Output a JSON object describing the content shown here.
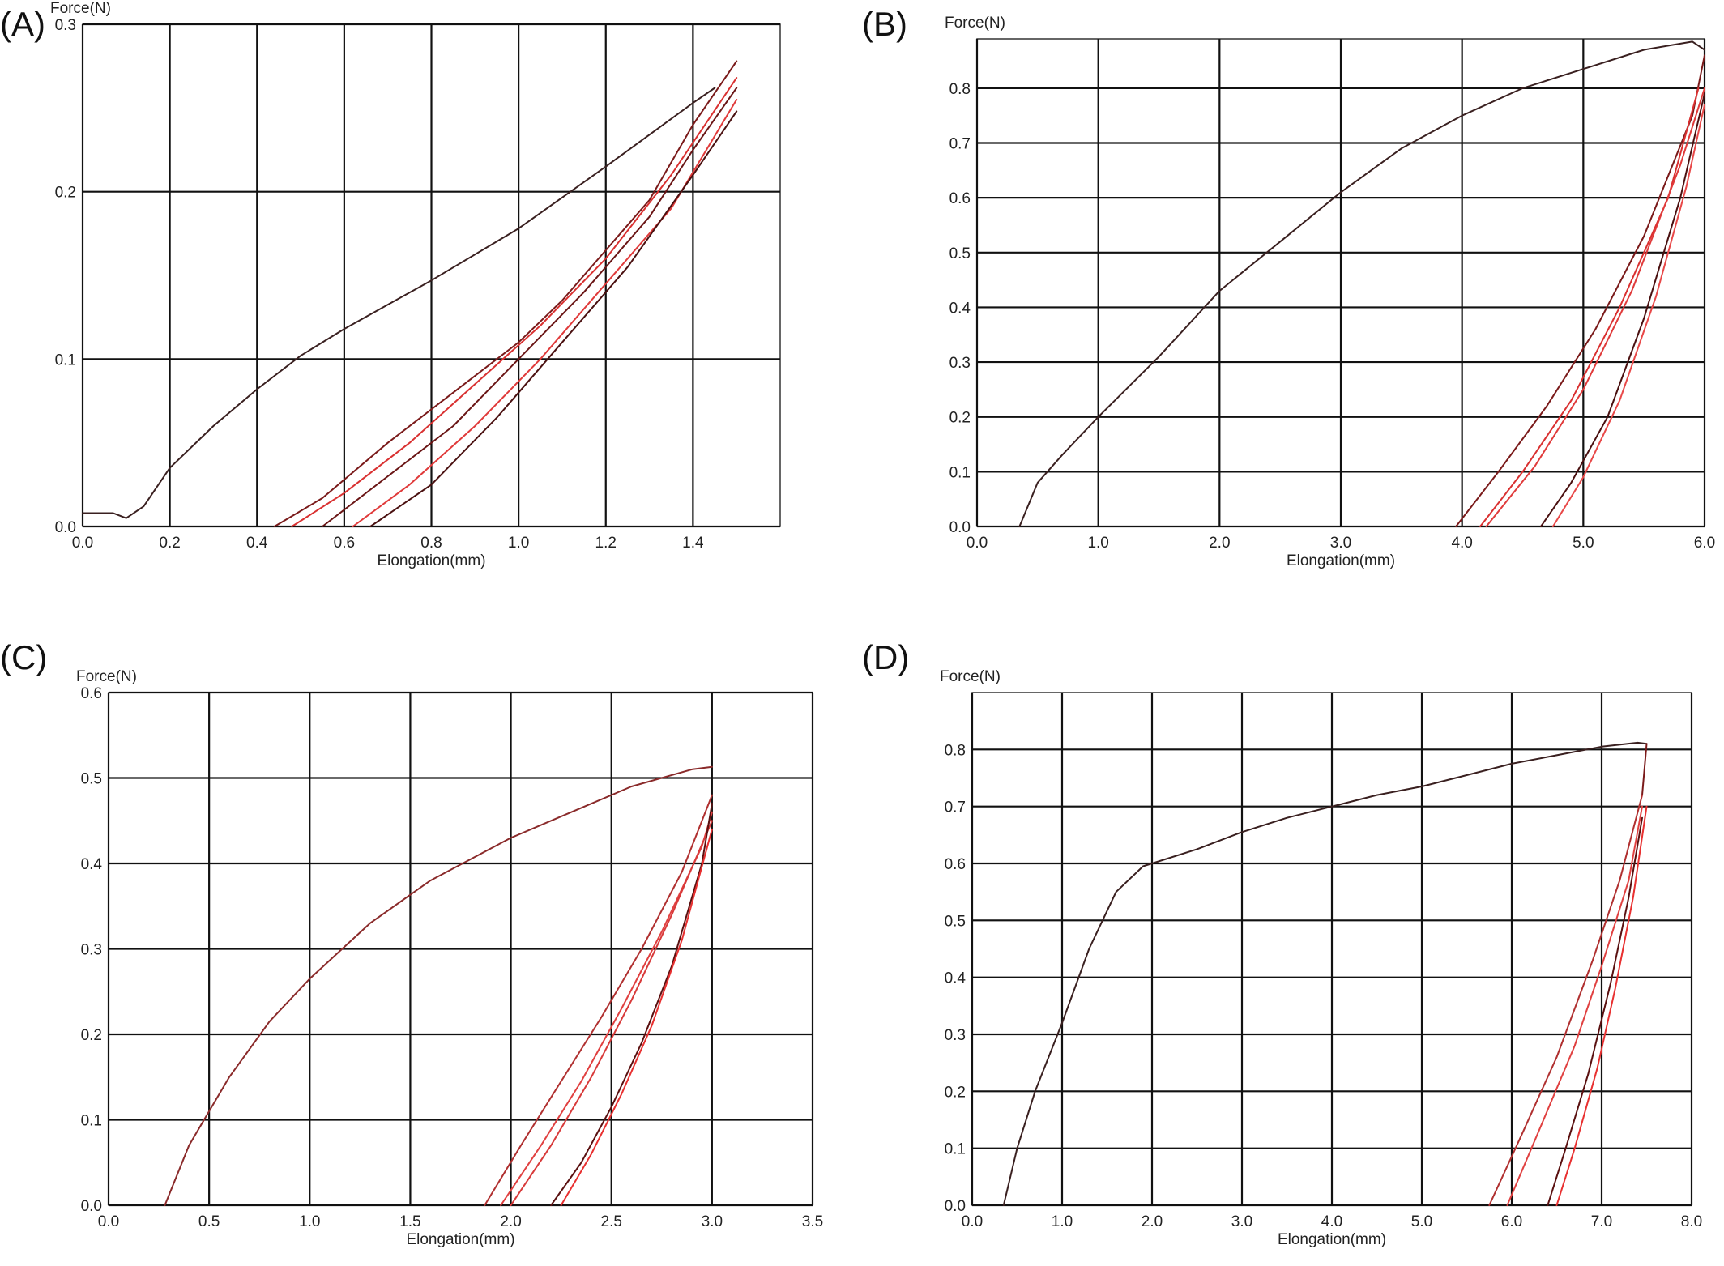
{
  "chart_data": [
    {
      "panel_label": "(A)",
      "type": "line",
      "ylabel": "Force(N)",
      "xlabel": "Elongation(mm)",
      "xlim": [
        0.0,
        1.6
      ],
      "ylim": [
        0.0,
        0.3
      ],
      "xticks": [
        0.0,
        0.2,
        0.4,
        0.6,
        0.8,
        1.0,
        1.2,
        1.4
      ],
      "xtick_labels": [
        "0.0",
        "0.2",
        "0.4",
        "0.6",
        "0.8",
        "1.0",
        "1.2",
        "1.4"
      ],
      "yticks": [
        0.0,
        0.1,
        0.2,
        0.3
      ],
      "ytick_labels": [
        "0.0",
        "0.1",
        "0.2",
        "0.3"
      ],
      "grid": true,
      "series": [
        {
          "color": "#3a2020",
          "x": [
            0.0,
            0.07,
            0.1,
            0.14,
            0.2,
            0.3,
            0.4,
            0.5,
            0.6,
            0.8,
            1.0,
            1.2,
            1.4,
            1.45
          ],
          "y": [
            0.008,
            0.008,
            0.005,
            0.012,
            0.035,
            0.06,
            0.082,
            0.102,
            0.118,
            0.147,
            0.178,
            0.215,
            0.253,
            0.262
          ]
        },
        {
          "color": "#7a1a1a",
          "x": [
            0.44,
            0.55,
            0.7,
            0.85,
            1.0,
            1.1,
            1.2,
            1.3,
            1.4,
            1.5
          ],
          "y": [
            0.0,
            0.017,
            0.05,
            0.08,
            0.11,
            0.135,
            0.165,
            0.195,
            0.24,
            0.278
          ]
        },
        {
          "color": "#d93030",
          "x": [
            0.48,
            0.6,
            0.75,
            0.9,
            1.05,
            1.2,
            1.35,
            1.5
          ],
          "y": [
            0.0,
            0.02,
            0.05,
            0.085,
            0.12,
            0.16,
            0.21,
            0.268
          ]
        },
        {
          "color": "#6a1515",
          "x": [
            0.55,
            0.7,
            0.85,
            1.0,
            1.15,
            1.3,
            1.4,
            1.5
          ],
          "y": [
            0.0,
            0.03,
            0.06,
            0.1,
            0.14,
            0.185,
            0.225,
            0.262
          ]
        },
        {
          "color": "#e03a3a",
          "x": [
            0.62,
            0.75,
            0.9,
            1.05,
            1.2,
            1.35,
            1.5
          ],
          "y": [
            0.0,
            0.025,
            0.06,
            0.1,
            0.145,
            0.19,
            0.255
          ]
        },
        {
          "color": "#4a1010",
          "x": [
            0.66,
            0.8,
            0.95,
            1.1,
            1.25,
            1.4,
            1.5
          ],
          "y": [
            0.0,
            0.025,
            0.065,
            0.11,
            0.155,
            0.21,
            0.248
          ]
        }
      ]
    },
    {
      "panel_label": "(B)",
      "type": "line",
      "ylabel": "Force(N)",
      "xlabel": "Elongation(mm)",
      "xlim": [
        0.0,
        6.0
      ],
      "ylim": [
        0.0,
        0.89
      ],
      "xticks": [
        0.0,
        1.0,
        2.0,
        3.0,
        4.0,
        5.0,
        6.0
      ],
      "xtick_labels": [
        "0.0",
        "1.0",
        "2.0",
        "3.0",
        "4.0",
        "5.0",
        "6.0"
      ],
      "yticks": [
        0.0,
        0.1,
        0.2,
        0.3,
        0.4,
        0.5,
        0.6,
        0.7,
        0.8
      ],
      "ytick_labels": [
        "0.0",
        "0.1",
        "0.2",
        "0.3",
        "0.4",
        "0.5",
        "0.6",
        "0.7",
        "0.8"
      ],
      "grid": true,
      "series": [
        {
          "color": "#3a2020",
          "x": [
            0.35,
            0.5,
            0.7,
            1.0,
            1.5,
            2.0,
            2.5,
            3.0,
            3.5,
            4.0,
            4.5,
            5.0,
            5.5,
            5.9,
            6.0
          ],
          "y": [
            0.0,
            0.08,
            0.13,
            0.2,
            0.31,
            0.43,
            0.52,
            0.61,
            0.69,
            0.75,
            0.8,
            0.835,
            0.87,
            0.885,
            0.87
          ]
        },
        {
          "color": "#7a1a1a",
          "x": [
            3.95,
            4.3,
            4.7,
            5.1,
            5.5,
            5.9,
            6.0
          ],
          "y": [
            0.0,
            0.1,
            0.22,
            0.36,
            0.53,
            0.75,
            0.86
          ]
        },
        {
          "color": "#d93030",
          "x": [
            4.15,
            4.5,
            4.9,
            5.3,
            5.7,
            5.95
          ],
          "y": [
            0.0,
            0.1,
            0.23,
            0.4,
            0.6,
            0.8
          ]
        },
        {
          "color": "#e03a3a",
          "x": [
            4.2,
            4.6,
            5.0,
            5.4,
            5.8,
            6.0
          ],
          "y": [
            0.0,
            0.11,
            0.25,
            0.43,
            0.66,
            0.8
          ]
        },
        {
          "color": "#4a1010",
          "x": [
            4.65,
            4.9,
            5.2,
            5.5,
            5.8,
            6.0
          ],
          "y": [
            0.0,
            0.08,
            0.2,
            0.38,
            0.6,
            0.79
          ]
        },
        {
          "color": "#e84848",
          "x": [
            4.75,
            5.0,
            5.3,
            5.6,
            5.85,
            6.0
          ],
          "y": [
            0.0,
            0.09,
            0.23,
            0.42,
            0.62,
            0.77
          ]
        }
      ]
    },
    {
      "panel_label": "(C)",
      "type": "line",
      "ylabel": "Force(N)",
      "xlabel": "Elongation(mm)",
      "xlim": [
        0.0,
        3.5
      ],
      "ylim": [
        0.0,
        0.6
      ],
      "xticks": [
        0.0,
        0.5,
        1.0,
        1.5,
        2.0,
        2.5,
        3.0,
        3.5
      ],
      "xtick_labels": [
        "0.0",
        "0.5",
        "1.0",
        "1.5",
        "2.0",
        "2.5",
        "3.0",
        "3.5"
      ],
      "yticks": [
        0.0,
        0.1,
        0.2,
        0.3,
        0.4,
        0.5,
        0.6
      ],
      "ytick_labels": [
        "0.0",
        "0.1",
        "0.2",
        "0.3",
        "0.4",
        "0.5",
        "0.6"
      ],
      "grid": true,
      "series": [
        {
          "color": "#8a2a2a",
          "x": [
            0.28,
            0.4,
            0.5,
            0.6,
            0.8,
            1.0,
            1.3,
            1.6,
            2.0,
            2.3,
            2.6,
            2.9,
            3.0
          ],
          "y": [
            0.0,
            0.07,
            0.11,
            0.15,
            0.215,
            0.265,
            0.33,
            0.38,
            0.43,
            0.46,
            0.49,
            0.51,
            0.513
          ]
        },
        {
          "color": "#b03030",
          "x": [
            1.87,
            2.05,
            2.25,
            2.45,
            2.65,
            2.85,
            3.0
          ],
          "y": [
            0.0,
            0.07,
            0.145,
            0.22,
            0.3,
            0.39,
            0.48
          ]
        },
        {
          "color": "#e04040",
          "x": [
            1.95,
            2.15,
            2.35,
            2.55,
            2.75,
            2.95,
            3.0
          ],
          "y": [
            0.0,
            0.07,
            0.145,
            0.23,
            0.32,
            0.42,
            0.46
          ]
        },
        {
          "color": "#d83a3a",
          "x": [
            2.0,
            2.2,
            2.4,
            2.6,
            2.8,
            3.0
          ],
          "y": [
            0.0,
            0.07,
            0.15,
            0.24,
            0.34,
            0.45
          ]
        },
        {
          "color": "#5a1010",
          "x": [
            2.2,
            2.35,
            2.5,
            2.65,
            2.8,
            2.95,
            3.0
          ],
          "y": [
            0.0,
            0.05,
            0.115,
            0.19,
            0.28,
            0.4,
            0.47
          ]
        },
        {
          "color": "#e83030",
          "x": [
            2.25,
            2.4,
            2.55,
            2.7,
            2.85,
            3.0
          ],
          "y": [
            0.0,
            0.06,
            0.13,
            0.21,
            0.31,
            0.44
          ]
        }
      ]
    },
    {
      "panel_label": "(D)",
      "type": "line",
      "ylabel": "Force(N)",
      "xlabel": "Elongation(mm)",
      "xlim": [
        0.0,
        8.0
      ],
      "ylim": [
        0.0,
        0.9
      ],
      "xticks": [
        0.0,
        1.0,
        2.0,
        3.0,
        4.0,
        5.0,
        6.0,
        7.0,
        8.0
      ],
      "xtick_labels": [
        "0.0",
        "1.0",
        "2.0",
        "3.0",
        "4.0",
        "5.0",
        "6.0",
        "7.0",
        "8.0"
      ],
      "yticks": [
        0.0,
        0.1,
        0.2,
        0.3,
        0.4,
        0.5,
        0.6,
        0.7,
        0.8
      ],
      "ytick_labels": [
        "0.0",
        "0.1",
        "0.2",
        "0.3",
        "0.4",
        "0.5",
        "0.6",
        "0.7",
        "0.8"
      ],
      "grid": true,
      "series": [
        {
          "color": "#3a2020",
          "x": [
            0.35,
            0.5,
            0.7,
            1.0,
            1.3,
            1.6,
            1.9,
            2.0,
            2.5,
            3.0,
            3.5,
            4.0,
            4.5,
            5.0,
            5.5,
            6.0,
            6.5,
            7.0,
            7.4,
            7.5
          ],
          "y": [
            0.0,
            0.1,
            0.2,
            0.32,
            0.45,
            0.55,
            0.595,
            0.6,
            0.625,
            0.655,
            0.68,
            0.7,
            0.72,
            0.735,
            0.755,
            0.775,
            0.79,
            0.805,
            0.812,
            0.81
          ]
        },
        {
          "color": "#7a1a1a",
          "x": [
            7.5,
            7.45
          ],
          "y": [
            0.81,
            0.72
          ]
        },
        {
          "color": "#b03030",
          "x": [
            5.75,
            6.1,
            6.5,
            6.9,
            7.2,
            7.45
          ],
          "y": [
            0.0,
            0.12,
            0.26,
            0.43,
            0.57,
            0.72
          ]
        },
        {
          "color": "#e04040",
          "x": [
            5.95,
            6.3,
            6.7,
            7.0,
            7.3,
            7.45
          ],
          "y": [
            0.0,
            0.13,
            0.28,
            0.42,
            0.57,
            0.7
          ]
        },
        {
          "color": "#5a1010",
          "x": [
            6.4,
            6.6,
            6.85,
            7.1,
            7.3,
            7.45
          ],
          "y": [
            0.0,
            0.1,
            0.23,
            0.39,
            0.54,
            0.68
          ]
        },
        {
          "color": "#e83030",
          "x": [
            6.5,
            6.7,
            6.95,
            7.15,
            7.35,
            7.5
          ],
          "y": [
            0.0,
            0.1,
            0.24,
            0.38,
            0.54,
            0.7
          ]
        }
      ]
    }
  ]
}
